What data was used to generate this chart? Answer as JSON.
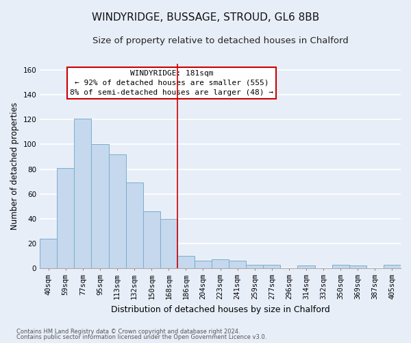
{
  "title": "WINDYRIDGE, BUSSAGE, STROUD, GL6 8BB",
  "subtitle": "Size of property relative to detached houses in Chalford",
  "xlabel": "Distribution of detached houses by size in Chalford",
  "ylabel": "Number of detached properties",
  "bar_labels": [
    "40sqm",
    "59sqm",
    "77sqm",
    "95sqm",
    "113sqm",
    "132sqm",
    "150sqm",
    "168sqm",
    "186sqm",
    "204sqm",
    "223sqm",
    "241sqm",
    "259sqm",
    "277sqm",
    "296sqm",
    "314sqm",
    "332sqm",
    "350sqm",
    "369sqm",
    "387sqm",
    "405sqm"
  ],
  "bar_heights": [
    24,
    81,
    121,
    100,
    92,
    69,
    46,
    40,
    10,
    6,
    7,
    6,
    3,
    3,
    0,
    2,
    0,
    3,
    2,
    0,
    3
  ],
  "bar_color": "#c5d8ed",
  "bar_edge_color": "#7aaecc",
  "vline_color": "#cc0000",
  "annotation_title": "WINDYRIDGE: 181sqm",
  "annotation_line1": "← 92% of detached houses are smaller (555)",
  "annotation_line2": "8% of semi-detached houses are larger (48) →",
  "annotation_box_color": "#ffffff",
  "annotation_box_edge": "#cc0000",
  "ylim": [
    0,
    165
  ],
  "yticks": [
    0,
    20,
    40,
    60,
    80,
    100,
    120,
    140,
    160
  ],
  "footnote1": "Contains HM Land Registry data © Crown copyright and database right 2024.",
  "footnote2": "Contains public sector information licensed under the Open Government Licence v3.0.",
  "background_color": "#e8eef8",
  "plot_background": "#e8eef8",
  "grid_color": "#ffffff",
  "title_fontsize": 11,
  "subtitle_fontsize": 9.5,
  "tick_fontsize": 7.5,
  "ylabel_fontsize": 8.5,
  "xlabel_fontsize": 9,
  "footnote_fontsize": 6,
  "ann_fontsize": 8
}
